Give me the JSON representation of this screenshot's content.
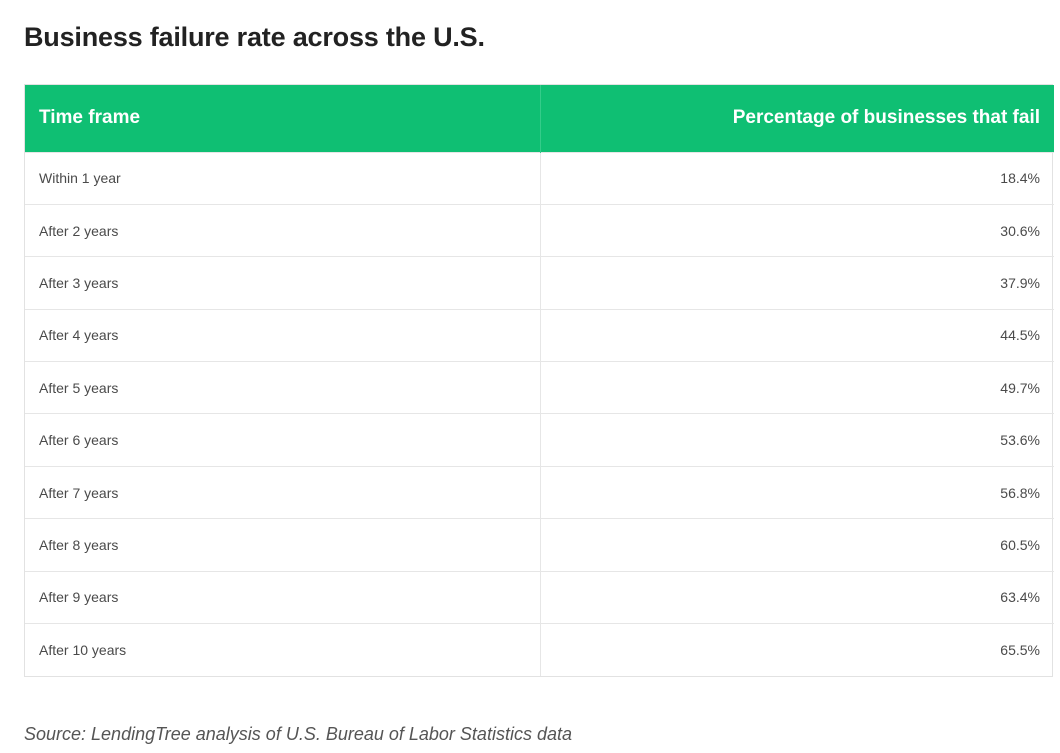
{
  "title": "Business failure rate across the U.S.",
  "table": {
    "headers": [
      "Time frame",
      "Percentage of businesses that fail"
    ],
    "rows": [
      {
        "time_frame": "Within 1 year",
        "percentage": "18.4%"
      },
      {
        "time_frame": "After 2 years",
        "percentage": "30.6%"
      },
      {
        "time_frame": "After 3 years",
        "percentage": "37.9%"
      },
      {
        "time_frame": "After 4 years",
        "percentage": "44.5%"
      },
      {
        "time_frame": "After 5 years",
        "percentage": "49.7%"
      },
      {
        "time_frame": "After 6 years",
        "percentage": "53.6%"
      },
      {
        "time_frame": "After 7 years",
        "percentage": "56.8%"
      },
      {
        "time_frame": "After 8 years",
        "percentage": "60.5%"
      },
      {
        "time_frame": "After 9 years",
        "percentage": "63.4%"
      },
      {
        "time_frame": "After 10 years",
        "percentage": "65.5%"
      }
    ]
  },
  "source": "Source: LendingTree analysis of U.S. Bureau of Labor Statistics data",
  "colors": {
    "header_background": "#0fbf73",
    "header_text": "#ffffff"
  }
}
